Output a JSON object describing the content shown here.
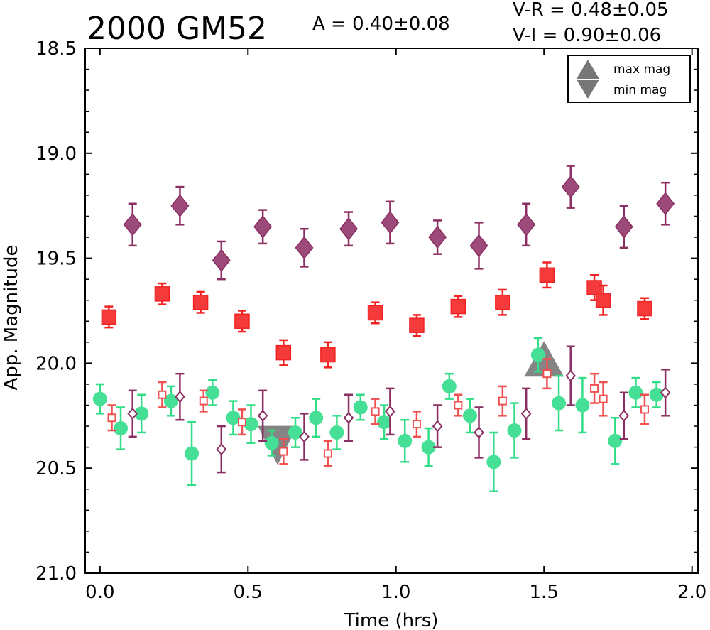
{
  "chart_data": {
    "type": "scatter",
    "title": "2000 GM52",
    "amplitude_text": "A  = 0.40±0.08",
    "color_text_1": "V-R = 0.48±0.05",
    "color_text_2": "V-I  = 0.90±0.06",
    "xlabel": "Time (hrs)",
    "ylabel": "App. Magnitude",
    "xlim": [
      -0.05,
      2.02
    ],
    "ylim": [
      21.0,
      18.5
    ],
    "y_inverted": true,
    "xticks": [
      0.0,
      0.5,
      1.0,
      1.5,
      2.0
    ],
    "xtick_labels": [
      "0.0",
      "0.5",
      "1.0",
      "1.5",
      "2.0"
    ],
    "yticks": [
      18.5,
      19.0,
      19.5,
      20.0,
      20.5,
      21.0
    ],
    "ytick_labels": [
      "18.5",
      "19.0",
      "19.5",
      "20.0",
      "20.5",
      "21.0"
    ],
    "grid": false,
    "legend": {
      "placement": "top-right",
      "entries": [
        {
          "label": "max mag",
          "marker": "triangle-up",
          "color": "#777777"
        },
        {
          "label": "min mag",
          "marker": "triangle-down",
          "color": "#777777"
        }
      ]
    },
    "series": [
      {
        "marker": "diamond-filled",
        "color": "#8b2e62",
        "x": [
          0.11,
          0.27,
          0.41,
          0.55,
          0.69,
          0.84,
          0.98,
          1.14,
          1.28,
          1.44,
          1.59,
          1.77,
          1.91
        ],
        "y": [
          19.34,
          19.25,
          19.51,
          19.35,
          19.45,
          19.36,
          19.33,
          19.4,
          19.44,
          19.34,
          19.16,
          19.35,
          19.24
        ],
        "err": [
          0.1,
          0.09,
          0.09,
          0.08,
          0.09,
          0.08,
          0.1,
          0.08,
          0.11,
          0.1,
          0.1,
          0.1,
          0.1
        ]
      },
      {
        "marker": "square-filled",
        "color": "#f22222",
        "x": [
          0.03,
          0.21,
          0.34,
          0.48,
          0.62,
          0.77,
          0.93,
          1.07,
          1.21,
          1.36,
          1.51,
          1.67,
          1.7,
          1.84
        ],
        "y": [
          19.78,
          19.67,
          19.71,
          19.8,
          19.95,
          19.96,
          19.76,
          19.82,
          19.73,
          19.71,
          19.58,
          19.64,
          19.7,
          19.74
        ],
        "err": [
          0.05,
          0.05,
          0.05,
          0.05,
          0.06,
          0.06,
          0.05,
          0.05,
          0.05,
          0.06,
          0.06,
          0.06,
          0.07,
          0.05
        ]
      },
      {
        "marker": "circle-filled",
        "color": "#33dd88",
        "x": [
          0.0,
          0.07,
          0.14,
          0.24,
          0.31,
          0.38,
          0.45,
          0.51,
          0.58,
          0.66,
          0.73,
          0.8,
          0.88,
          0.96,
          1.03,
          1.11,
          1.18,
          1.25,
          1.33,
          1.4,
          1.48,
          1.55,
          1.63,
          1.74,
          1.81,
          1.88
        ],
        "y": [
          20.17,
          20.31,
          20.24,
          20.18,
          20.43,
          20.14,
          20.26,
          20.29,
          20.38,
          20.33,
          20.26,
          20.33,
          20.21,
          20.28,
          20.37,
          20.4,
          20.11,
          20.25,
          20.47,
          20.32,
          19.96,
          20.19,
          20.2,
          20.37,
          20.14,
          20.15
        ],
        "err": [
          0.07,
          0.1,
          0.09,
          0.07,
          0.15,
          0.06,
          0.08,
          0.09,
          0.06,
          0.07,
          0.09,
          0.08,
          0.06,
          0.08,
          0.1,
          0.09,
          0.06,
          0.08,
          0.14,
          0.13,
          0.08,
          0.13,
          0.13,
          0.11,
          0.07,
          0.06
        ]
      },
      {
        "marker": "square-open",
        "color": "#f05050",
        "x": [
          0.04,
          0.21,
          0.35,
          0.48,
          0.62,
          0.77,
          0.93,
          1.07,
          1.21,
          1.36,
          1.51,
          1.67,
          1.7,
          1.84
        ],
        "y": [
          20.26,
          20.15,
          20.18,
          20.28,
          20.42,
          20.43,
          20.23,
          20.29,
          20.2,
          20.18,
          20.05,
          20.12,
          20.17,
          20.22
        ],
        "err": [
          0.06,
          0.06,
          0.05,
          0.06,
          0.06,
          0.06,
          0.06,
          0.06,
          0.05,
          0.07,
          0.07,
          0.07,
          0.08,
          0.07
        ]
      },
      {
        "marker": "diamond-open",
        "color": "#8b2e62",
        "x": [
          0.11,
          0.27,
          0.41,
          0.55,
          0.69,
          0.84,
          0.98,
          1.14,
          1.28,
          1.44,
          1.59,
          1.77,
          1.91
        ],
        "y": [
          20.24,
          20.16,
          20.41,
          20.25,
          20.35,
          20.26,
          20.23,
          20.3,
          20.33,
          20.24,
          20.06,
          20.25,
          20.14
        ],
        "err": [
          0.11,
          0.11,
          0.11,
          0.12,
          0.11,
          0.11,
          0.11,
          0.1,
          0.12,
          0.12,
          0.14,
          0.11,
          0.11
        ]
      }
    ],
    "extrema": [
      {
        "kind": "min",
        "x": 0.6,
        "y": 20.4,
        "marker": "triangle-down",
        "color": "#777777"
      },
      {
        "kind": "max",
        "x": 1.5,
        "y": 20.03,
        "marker": "triangle-up",
        "color": "#777777"
      }
    ]
  }
}
